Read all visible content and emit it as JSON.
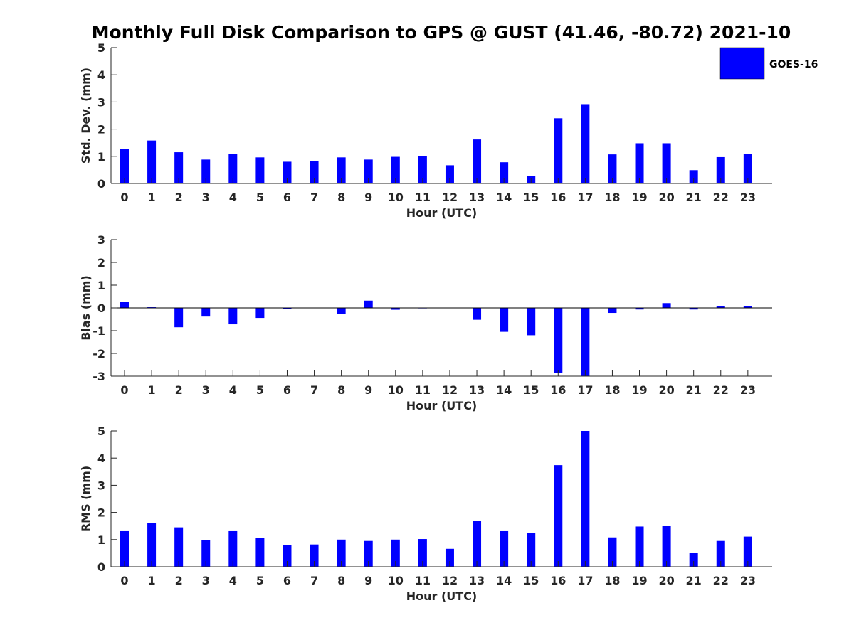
{
  "figure": {
    "title": "Monthly Full Disk Comparison to GPS @ GUST (41.46, -80.72) 2021-10"
  },
  "legend": {
    "label": "GOES-16",
    "color": "#0000ff"
  },
  "chart_data": [
    {
      "type": "bar",
      "xlabel": "Hour (UTC)",
      "ylabel": "Std. Dev. (mm)",
      "ylim": [
        0,
        5
      ],
      "yticks": [
        0,
        1,
        2,
        3,
        4,
        5
      ],
      "categories": [
        "0",
        "1",
        "2",
        "3",
        "4",
        "5",
        "6",
        "7",
        "8",
        "9",
        "10",
        "11",
        "12",
        "13",
        "14",
        "15",
        "16",
        "17",
        "18",
        "19",
        "20",
        "21",
        "22",
        "23"
      ],
      "series": [
        {
          "name": "GOES-16",
          "color": "#0000ff",
          "values": [
            1.27,
            1.58,
            1.15,
            0.88,
            1.09,
            0.96,
            0.8,
            0.83,
            0.96,
            0.88,
            0.98,
            1.01,
            0.67,
            1.62,
            0.78,
            0.28,
            2.4,
            2.92,
            1.07,
            1.48,
            1.48,
            0.49,
            0.97,
            1.09
          ]
        }
      ],
      "grid": false
    },
    {
      "type": "bar",
      "xlabel": "Hour (UTC)",
      "ylabel": "Bias (mm)",
      "ylim": [
        -3,
        3
      ],
      "yticks": [
        -3,
        -2,
        -1,
        0,
        1,
        2,
        3
      ],
      "zero_line": true,
      "categories": [
        "0",
        "1",
        "2",
        "3",
        "4",
        "5",
        "6",
        "7",
        "8",
        "9",
        "10",
        "11",
        "12",
        "13",
        "14",
        "15",
        "16",
        "17",
        "18",
        "19",
        "20",
        "21",
        "22",
        "23"
      ],
      "series": [
        {
          "name": "GOES-16",
          "color": "#0000ff",
          "values": [
            0.25,
            0.03,
            -0.85,
            -0.38,
            -0.72,
            -0.44,
            -0.04,
            -0.01,
            -0.28,
            0.32,
            -0.08,
            -0.02,
            0.0,
            -0.52,
            -1.05,
            -1.2,
            -2.85,
            -3.0,
            -0.22,
            -0.07,
            0.21,
            -0.07,
            0.07,
            0.07
          ]
        }
      ],
      "grid": false
    },
    {
      "type": "bar",
      "xlabel": "Hour (UTC)",
      "ylabel": "RMS (mm)",
      "ylim": [
        0,
        5
      ],
      "yticks": [
        0,
        1,
        2,
        3,
        4,
        5
      ],
      "categories": [
        "0",
        "1",
        "2",
        "3",
        "4",
        "5",
        "6",
        "7",
        "8",
        "9",
        "10",
        "11",
        "12",
        "13",
        "14",
        "15",
        "16",
        "17",
        "18",
        "19",
        "20",
        "21",
        "22",
        "23"
      ],
      "series": [
        {
          "name": "GOES-16",
          "color": "#0000ff",
          "values": [
            1.31,
            1.6,
            1.45,
            0.97,
            1.31,
            1.05,
            0.79,
            0.82,
            1.0,
            0.95,
            1.0,
            1.02,
            0.66,
            1.68,
            1.31,
            1.24,
            3.74,
            5.0,
            1.08,
            1.48,
            1.5,
            0.5,
            0.95,
            1.11
          ]
        }
      ],
      "grid": false
    }
  ]
}
